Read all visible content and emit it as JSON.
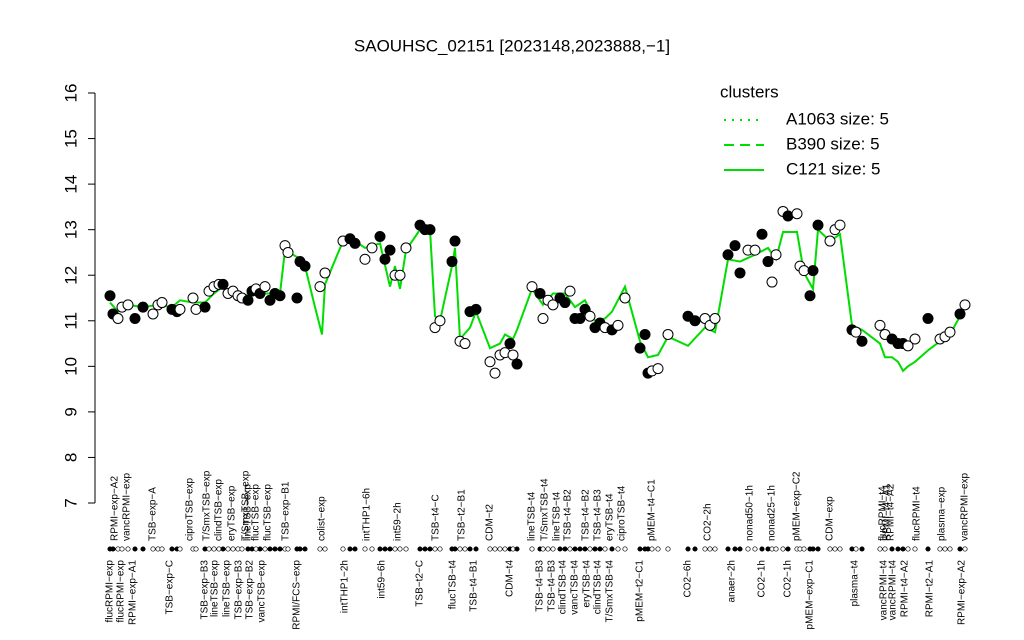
{
  "chart_data": {
    "type": "scatter",
    "title": "SAOUHSC_02151 [2023148,2023888,−1]",
    "xlim": [
      0,
      860
    ],
    "ylim": [
      7,
      16
    ],
    "yticks": [
      7,
      8,
      9,
      10,
      11,
      12,
      13,
      14,
      15,
      16
    ],
    "legend_title": "clusters",
    "legend_color": "#00dd00",
    "legend_position": "upper right",
    "clusters": [
      {
        "name": "A1063 size: 5",
        "dash": "dotted"
      },
      {
        "name": "B390 size: 5",
        "dash": "dashed"
      },
      {
        "name": "C121 size: 5",
        "dash": "solid"
      }
    ],
    "xlabels_top": [
      {
        "value": 7,
        "label": "RPMI−exp−A2"
      },
      {
        "value": 19,
        "label": "vancRPMI−exp"
      },
      {
        "value": 45,
        "label": "TSB−exp−A"
      },
      {
        "value": 82,
        "label": "ciproTSB−exp"
      },
      {
        "value": 99,
        "label": "T/SmxTSB−exp"
      },
      {
        "value": 111,
        "label": "clindTSB−exp"
      },
      {
        "value": 124,
        "label": "eryTSB−exp"
      },
      {
        "value": 138,
        "label": "T/SmxTSB−exp"
      },
      {
        "value": 140,
        "label": "lineTSB−exp"
      },
      {
        "value": 148,
        "label": "flucTSB−exp"
      },
      {
        "value": 160,
        "label": "flucTSB−exp"
      },
      {
        "value": 178,
        "label": "TSB−exp−B1"
      },
      {
        "value": 214,
        "label": "colist−exp"
      },
      {
        "value": 259,
        "label": "intTHP1−6h"
      },
      {
        "value": 290,
        "label": "int59−2h"
      },
      {
        "value": 328,
        "label": "TSB−t4−C"
      },
      {
        "value": 354,
        "label": "TSB−t2−B1"
      },
      {
        "value": 382,
        "label": "CDM−t2"
      },
      {
        "value": 424,
        "label": "lineTSB−t4"
      },
      {
        "value": 437,
        "label": "T/SmxTSB−t4"
      },
      {
        "value": 449,
        "label": "lineTSB−t4"
      },
      {
        "value": 460,
        "label": "TSB−t4−B2"
      },
      {
        "value": 478,
        "label": "TSB−t4−B2"
      },
      {
        "value": 490,
        "label": "TSB−t4−B3"
      },
      {
        "value": 502,
        "label": "eryTSB−t4"
      },
      {
        "value": 514,
        "label": "ciproTSB−t4"
      },
      {
        "value": 544,
        "label": "pMEM−t4−C1"
      },
      {
        "value": 600,
        "label": "CO2−2h"
      },
      {
        "value": 642,
        "label": "nonad50−1h"
      },
      {
        "value": 664,
        "label": "nonad25−1h"
      },
      {
        "value": 689,
        "label": "pMEM−exp−C2"
      },
      {
        "value": 722,
        "label": "CDM−exp"
      },
      {
        "value": 775,
        "label": "flucRPMI−t4"
      },
      {
        "value": 779,
        "label": "RPMI−t4−A1"
      },
      {
        "value": 783,
        "label": "RPMI−t4−A2"
      },
      {
        "value": 809,
        "label": "flucRPMI−t4"
      },
      {
        "value": 834,
        "label": "plasma−exp"
      },
      {
        "value": 857,
        "label": "vancRPMI−exp"
      }
    ],
    "xlabels_bottom": [
      {
        "value": 2,
        "label": "flucRPMI−exp"
      },
      {
        "value": 13,
        "label": "flucRPMI−exp"
      },
      {
        "value": 25,
        "label": "RPMI−exp−A1"
      },
      {
        "value": 62,
        "label": "TSB−exp−C"
      },
      {
        "value": 97,
        "label": "TSB−exp−B3"
      },
      {
        "value": 107,
        "label": "lineTSB−exp"
      },
      {
        "value": 119,
        "label": "lineTSB−exp"
      },
      {
        "value": 131,
        "label": "TSB−exp−B3"
      },
      {
        "value": 142,
        "label": "TSB−exp−B2"
      },
      {
        "value": 154,
        "label": "vancTSB−exp"
      },
      {
        "value": 189,
        "label": "RPMI/FCS−exp"
      },
      {
        "value": 237,
        "label": "intTHP1−2h"
      },
      {
        "value": 274,
        "label": "int59−6h"
      },
      {
        "value": 312,
        "label": "TSB−t2−C"
      },
      {
        "value": 345,
        "label": "flucTSB−t4"
      },
      {
        "value": 366,
        "label": "TSB−t4−B1"
      },
      {
        "value": 402,
        "label": "CDM−t4"
      },
      {
        "value": 432,
        "label": "TSB−t4−B3"
      },
      {
        "value": 444,
        "label": "TSB−t4−B3"
      },
      {
        "value": 455,
        "label": "clindTSB−t4"
      },
      {
        "value": 467,
        "label": "vancTSB−t4"
      },
      {
        "value": 479,
        "label": "eryTSB−t4"
      },
      {
        "value": 490,
        "label": "clindTSB−t4"
      },
      {
        "value": 502,
        "label": "T/SmxTSB−t4"
      },
      {
        "value": 532,
        "label": "pMEM−t2−C1"
      },
      {
        "value": 580,
        "label": "CO2−6h"
      },
      {
        "value": 624,
        "label": "anaer−2h"
      },
      {
        "value": 654,
        "label": "CO2−1h"
      },
      {
        "value": 680,
        "label": "CO2−1h"
      },
      {
        "value": 702,
        "label": "pMEM−exp−C1"
      },
      {
        "value": 747,
        "label": "plasma−t4"
      },
      {
        "value": 776,
        "label": "vancRPMI−t4"
      },
      {
        "value": 785,
        "label": "vancRPMI−t4"
      },
      {
        "value": 797,
        "label": "RPMI−t4−A2"
      },
      {
        "value": 822,
        "label": "RPMI−t2−A1"
      },
      {
        "value": 854,
        "label": "RPMI−exp−A2"
      }
    ],
    "points": {
      "x": [
        2,
        5,
        10,
        14,
        20,
        27,
        35,
        45,
        50,
        54,
        64,
        69,
        72,
        85,
        88,
        97,
        101,
        106,
        111,
        115,
        120,
        125,
        130,
        134,
        140,
        144,
        148,
        152,
        157,
        162,
        167,
        172,
        177,
        180,
        189,
        192,
        197,
        212,
        217,
        235,
        242,
        247,
        257,
        264,
        272,
        277,
        282,
        287,
        292,
        298,
        312,
        317,
        322,
        327,
        332,
        344,
        347,
        352,
        357,
        362,
        368,
        382,
        387,
        392,
        397,
        402,
        405,
        409,
        424,
        432,
        435,
        440,
        445,
        452,
        457,
        462,
        467,
        472,
        477,
        482,
        487,
        492,
        497,
        504,
        510,
        517,
        532,
        537,
        540,
        544,
        550,
        560,
        580,
        587,
        597,
        602,
        607,
        620,
        627,
        632,
        640,
        647,
        654,
        660,
        664,
        668,
        675,
        680,
        689,
        692,
        696,
        702,
        705,
        710,
        722,
        727,
        732,
        744,
        748,
        754,
        772,
        777,
        784,
        790,
        795,
        800,
        807,
        820,
        832,
        837,
        842,
        852,
        857
      ],
      "values": [
        11.55,
        11.15,
        11.05,
        11.3,
        11.35,
        11.05,
        11.3,
        11.15,
        11.35,
        11.4,
        11.25,
        11.2,
        11.25,
        11.5,
        11.25,
        11.3,
        11.65,
        11.75,
        11.8,
        11.8,
        11.6,
        11.65,
        11.55,
        11.5,
        11.45,
        11.65,
        11.7,
        11.6,
        11.75,
        11.45,
        11.6,
        11.55,
        12.65,
        12.5,
        11.5,
        12.3,
        12.2,
        11.75,
        12.05,
        12.75,
        12.8,
        12.7,
        12.35,
        12.6,
        12.85,
        12.35,
        12.55,
        12.0,
        12.0,
        12.6,
        13.1,
        13.0,
        13.0,
        10.85,
        11.0,
        12.3,
        12.75,
        10.55,
        10.5,
        11.2,
        11.25,
        10.1,
        9.85,
        10.25,
        10.3,
        10.5,
        10.25,
        10.05,
        11.75,
        11.6,
        11.05,
        11.45,
        11.35,
        11.5,
        11.4,
        11.65,
        11.05,
        11.05,
        11.25,
        11.1,
        10.85,
        10.95,
        10.85,
        10.8,
        10.9,
        11.5,
        10.4,
        10.7,
        9.85,
        9.9,
        9.95,
        10.7,
        11.1,
        11.0,
        11.05,
        10.9,
        11.05,
        12.45,
        12.65,
        12.05,
        12.55,
        12.55,
        12.9,
        12.3,
        11.85,
        12.45,
        13.4,
        13.3,
        13.35,
        12.2,
        12.1,
        11.55,
        12.1,
        13.1,
        12.75,
        13.0,
        13.1,
        10.8,
        10.75,
        10.55,
        10.9,
        10.7,
        10.6,
        10.5,
        10.5,
        10.45,
        10.6,
        11.05,
        10.6,
        10.65,
        10.75,
        11.15,
        11.35
      ],
      "filled": [
        1,
        1,
        0,
        0,
        0,
        1,
        1,
        0,
        0,
        0,
        1,
        1,
        0,
        0,
        0,
        1,
        0,
        0,
        0,
        1,
        0,
        0,
        0,
        0,
        1,
        1,
        0,
        1,
        0,
        1,
        1,
        1,
        0,
        0,
        1,
        1,
        1,
        0,
        0,
        0,
        1,
        1,
        0,
        0,
        1,
        1,
        1,
        0,
        0,
        0,
        1,
        1,
        1,
        0,
        0,
        1,
        1,
        0,
        0,
        1,
        1,
        0,
        0,
        0,
        0,
        1,
        0,
        1,
        0,
        1,
        0,
        0,
        0,
        1,
        1,
        0,
        1,
        1,
        1,
        0,
        1,
        1,
        0,
        1,
        0,
        0,
        1,
        1,
        1,
        0,
        0,
        0,
        1,
        1,
        0,
        0,
        0,
        1,
        1,
        1,
        0,
        0,
        1,
        1,
        0,
        0,
        0,
        1,
        0,
        0,
        0,
        1,
        1,
        1,
        0,
        0,
        0,
        1,
        0,
        1,
        0,
        0,
        1,
        1,
        1,
        0,
        0,
        1,
        0,
        0,
        0,
        1,
        0
      ]
    },
    "line": {
      "color": "#00dd00",
      "x": [
        2,
        10,
        20,
        35,
        50,
        64,
        72,
        85,
        97,
        106,
        115,
        125,
        134,
        144,
        157,
        172,
        177,
        189,
        197,
        207,
        214,
        217,
        235,
        247,
        257,
        272,
        282,
        287,
        292,
        298,
        312,
        322,
        327,
        332,
        344,
        347,
        352,
        362,
        368,
        382,
        392,
        397,
        405,
        409,
        424,
        435,
        445,
        457,
        467,
        477,
        487,
        497,
        504,
        517,
        532,
        540,
        550,
        560,
        580,
        597,
        607,
        620,
        632,
        647,
        660,
        668,
        675,
        689,
        696,
        705,
        710,
        722,
        732,
        744,
        754,
        772,
        777,
        784,
        790,
        795,
        800,
        807,
        820,
        832,
        842,
        857
      ],
      "values": [
        11.4,
        11.2,
        11.35,
        11.3,
        11.35,
        11.3,
        11.45,
        11.4,
        11.4,
        11.6,
        11.75,
        11.6,
        11.55,
        11.6,
        11.6,
        11.6,
        12.55,
        12.4,
        12.2,
        11.3,
        10.7,
        11.8,
        12.75,
        12.75,
        12.6,
        12.7,
        11.75,
        12.2,
        11.7,
        12.55,
        13.0,
        13.0,
        11.1,
        11.0,
        12.2,
        12.6,
        10.6,
        10.85,
        11.2,
        10.4,
        10.5,
        10.7,
        10.6,
        10.8,
        11.7,
        11.35,
        11.6,
        11.6,
        11.3,
        11.45,
        11.0,
        11.05,
        11.2,
        11.75,
        10.55,
        10.2,
        10.25,
        10.65,
        10.45,
        10.85,
        10.75,
        12.35,
        12.3,
        12.45,
        12.6,
        12.35,
        12.95,
        12.95,
        12.05,
        11.7,
        13.0,
        12.75,
        12.9,
        10.9,
        10.8,
        10.5,
        10.2,
        10.2,
        10.1,
        9.9,
        10.0,
        10.1,
        10.35,
        10.55,
        10.7,
        11.3
      ]
    }
  }
}
